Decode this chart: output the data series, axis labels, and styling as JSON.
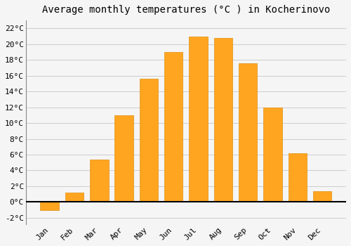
{
  "months": [
    "Jan",
    "Feb",
    "Mar",
    "Apr",
    "May",
    "Jun",
    "Jul",
    "Aug",
    "Sep",
    "Oct",
    "Nov",
    "Dec"
  ],
  "values": [
    -1.0,
    1.2,
    5.4,
    11.0,
    15.6,
    19.0,
    21.0,
    20.8,
    17.6,
    12.0,
    6.2,
    1.4
  ],
  "bar_color": "#FFA520",
  "bar_edge_color": "#E09010",
  "title": "Average monthly temperatures (°C ) in Kocherinovo",
  "ylim": [
    -2.8,
    23.0
  ],
  "yticks": [
    0,
    2,
    4,
    6,
    8,
    10,
    12,
    14,
    16,
    18,
    20,
    22
  ],
  "ytick_labels": [
    "0°C",
    "2°C",
    "4°C",
    "6°C",
    "8°C",
    "10°C",
    "12°C",
    "14°C",
    "16°C",
    "18°C",
    "20°C",
    "22°C"
  ],
  "extra_yticks": [
    -2
  ],
  "extra_ytick_labels": [
    "-2°C"
  ],
  "background_color": "#F5F5F5",
  "grid_color": "#CCCCCC",
  "title_fontsize": 10,
  "tick_fontsize": 8,
  "bar_width": 0.75
}
